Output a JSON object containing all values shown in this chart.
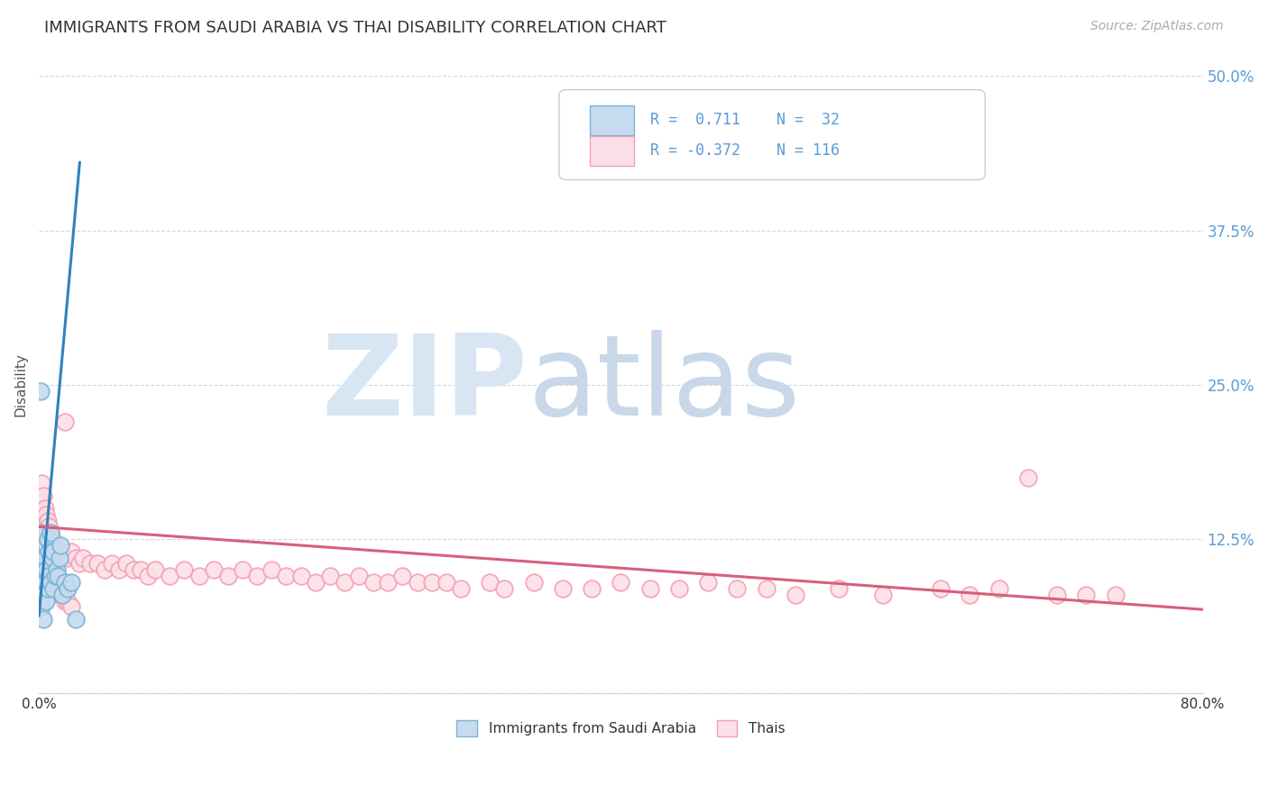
{
  "title": "IMMIGRANTS FROM SAUDI ARABIA VS THAI DISABILITY CORRELATION CHART",
  "source_text": "Source: ZipAtlas.com",
  "ylabel": "Disability",
  "xlim": [
    0.0,
    0.8
  ],
  "ylim": [
    0.0,
    0.5
  ],
  "ytick_positions": [
    0.0,
    0.125,
    0.25,
    0.375,
    0.5
  ],
  "ytick_labels_right": [
    "",
    "12.5%",
    "25.0%",
    "37.5%",
    "50.0%"
  ],
  "xtick_positions": [
    0.0,
    0.1,
    0.2,
    0.3,
    0.4,
    0.5,
    0.6,
    0.7,
    0.8
  ],
  "xtick_labels": [
    "0.0%",
    "",
    "",
    "",
    "",
    "",
    "",
    "",
    "80.0%"
  ],
  "watermark_zip": "ZIP",
  "watermark_atlas": "atlas",
  "legend_r1": "R =  0.711",
  "legend_n1": "N =  32",
  "legend_r2": "R = -0.372",
  "legend_n2": "N = 116",
  "blue_edge": "#7ab4d8",
  "blue_face": "#c6dbef",
  "pink_edge": "#f4a0b5",
  "pink_face": "#fce0e8",
  "trend_blue": "#3182bd",
  "trend_pink": "#d6607a",
  "grid_color": "#d0d8e0",
  "background_color": "#ffffff",
  "title_color": "#333333",
  "right_tick_color": "#5b9bd5",
  "source_color": "#aaaaaa",
  "legend_border": "#cccccc",
  "watermark_zip_color": "#d8e6f3",
  "watermark_atlas_color": "#c8d8e8",
  "blue_trend_start_x": 0.0,
  "blue_trend_start_y": 0.063,
  "blue_trend_end_x": 0.028,
  "blue_trend_end_y": 0.43,
  "pink_trend_start_x": 0.0,
  "pink_trend_start_y": 0.135,
  "pink_trend_end_x": 0.8,
  "pink_trend_end_y": 0.068,
  "sa_x": [
    0.001,
    0.001,
    0.002,
    0.002,
    0.002,
    0.003,
    0.003,
    0.003,
    0.004,
    0.004,
    0.005,
    0.005,
    0.005,
    0.006,
    0.006,
    0.007,
    0.007,
    0.008,
    0.008,
    0.009,
    0.01,
    0.01,
    0.011,
    0.012,
    0.013,
    0.014,
    0.015,
    0.016,
    0.018,
    0.02,
    0.022,
    0.025
  ],
  "sa_y": [
    0.245,
    0.075,
    0.13,
    0.095,
    0.07,
    0.115,
    0.1,
    0.06,
    0.11,
    0.09,
    0.12,
    0.1,
    0.075,
    0.125,
    0.085,
    0.115,
    0.095,
    0.13,
    0.09,
    0.11,
    0.115,
    0.085,
    0.095,
    0.1,
    0.095,
    0.11,
    0.12,
    0.08,
    0.09,
    0.085,
    0.09,
    0.06
  ],
  "th_x": [
    0.001,
    0.001,
    0.001,
    0.001,
    0.001,
    0.002,
    0.002,
    0.002,
    0.002,
    0.002,
    0.002,
    0.003,
    0.003,
    0.003,
    0.003,
    0.003,
    0.004,
    0.004,
    0.004,
    0.004,
    0.005,
    0.005,
    0.005,
    0.006,
    0.006,
    0.007,
    0.007,
    0.008,
    0.008,
    0.009,
    0.01,
    0.01,
    0.011,
    0.012,
    0.013,
    0.014,
    0.015,
    0.016,
    0.018,
    0.02,
    0.022,
    0.025,
    0.028,
    0.03,
    0.035,
    0.04,
    0.045,
    0.05,
    0.055,
    0.06,
    0.065,
    0.07,
    0.075,
    0.08,
    0.09,
    0.1,
    0.11,
    0.12,
    0.13,
    0.14,
    0.15,
    0.16,
    0.17,
    0.18,
    0.19,
    0.2,
    0.21,
    0.22,
    0.23,
    0.24,
    0.25,
    0.26,
    0.27,
    0.28,
    0.29,
    0.31,
    0.32,
    0.34,
    0.36,
    0.38,
    0.4,
    0.42,
    0.44,
    0.46,
    0.48,
    0.5,
    0.52,
    0.55,
    0.58,
    0.62,
    0.64,
    0.66,
    0.68,
    0.7,
    0.72,
    0.74,
    0.001,
    0.002,
    0.003,
    0.003,
    0.004,
    0.005,
    0.006,
    0.007,
    0.008,
    0.009,
    0.01,
    0.011,
    0.012,
    0.013,
    0.014,
    0.015,
    0.016,
    0.018,
    0.02,
    0.022
  ],
  "th_y": [
    0.16,
    0.145,
    0.13,
    0.12,
    0.11,
    0.17,
    0.155,
    0.14,
    0.125,
    0.115,
    0.1,
    0.16,
    0.145,
    0.13,
    0.115,
    0.1,
    0.15,
    0.135,
    0.12,
    0.105,
    0.145,
    0.13,
    0.115,
    0.14,
    0.125,
    0.135,
    0.12,
    0.13,
    0.115,
    0.125,
    0.12,
    0.11,
    0.115,
    0.11,
    0.115,
    0.11,
    0.115,
    0.11,
    0.22,
    0.11,
    0.115,
    0.11,
    0.105,
    0.11,
    0.105,
    0.105,
    0.1,
    0.105,
    0.1,
    0.105,
    0.1,
    0.1,
    0.095,
    0.1,
    0.095,
    0.1,
    0.095,
    0.1,
    0.095,
    0.1,
    0.095,
    0.1,
    0.095,
    0.095,
    0.09,
    0.095,
    0.09,
    0.095,
    0.09,
    0.09,
    0.095,
    0.09,
    0.09,
    0.09,
    0.085,
    0.09,
    0.085,
    0.09,
    0.085,
    0.085,
    0.09,
    0.085,
    0.085,
    0.09,
    0.085,
    0.085,
    0.08,
    0.085,
    0.08,
    0.085,
    0.08,
    0.085,
    0.175,
    0.08,
    0.08,
    0.08,
    0.105,
    0.115,
    0.11,
    0.105,
    0.11,
    0.105,
    0.1,
    0.1,
    0.095,
    0.095,
    0.095,
    0.09,
    0.09,
    0.085,
    0.085,
    0.08,
    0.08,
    0.075,
    0.075,
    0.07
  ]
}
